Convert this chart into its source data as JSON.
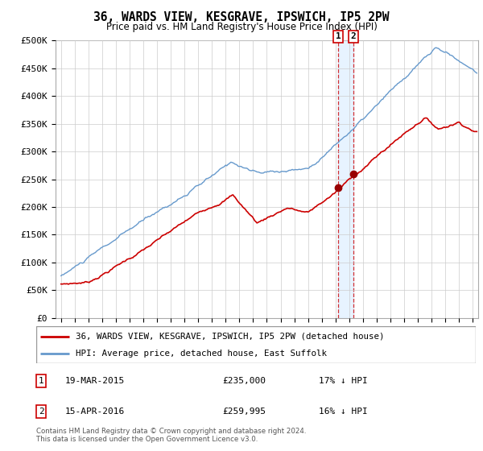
{
  "title": "36, WARDS VIEW, KESGRAVE, IPSWICH, IP5 2PW",
  "subtitle": "Price paid vs. HM Land Registry's House Price Index (HPI)",
  "ylabel_ticks": [
    "£0",
    "£50K",
    "£100K",
    "£150K",
    "£200K",
    "£250K",
    "£300K",
    "£350K",
    "£400K",
    "£450K",
    "£500K"
  ],
  "ytick_values": [
    0,
    50000,
    100000,
    150000,
    200000,
    250000,
    300000,
    350000,
    400000,
    450000,
    500000
  ],
  "legend_line1": "36, WARDS VIEW, KESGRAVE, IPSWICH, IP5 2PW (detached house)",
  "legend_line2": "HPI: Average price, detached house, East Suffolk",
  "transaction1_date": "19-MAR-2015",
  "transaction1_price": "£235,000",
  "transaction1_note": "17% ↓ HPI",
  "transaction2_date": "15-APR-2016",
  "transaction2_price": "£259,995",
  "transaction2_note": "16% ↓ HPI",
  "footer": "Contains HM Land Registry data © Crown copyright and database right 2024.\nThis data is licensed under the Open Government Licence v3.0.",
  "line1_color": "#cc0000",
  "line2_color": "#6699cc",
  "vline_color": "#cc0000",
  "shade_color": "#ddeeff",
  "background_color": "#ffffff",
  "grid_color": "#cccccc",
  "t1_year": 2015.21,
  "t1_price": 235000,
  "t2_year": 2016.29,
  "t2_price": 259995
}
